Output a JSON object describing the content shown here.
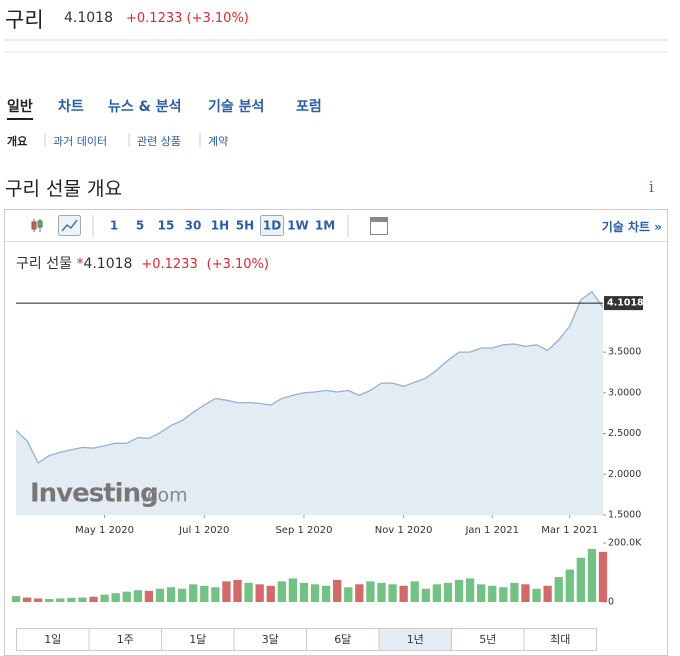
{
  "header": {
    "name": "구리",
    "price": "4.1018",
    "change": "+0.1233",
    "change_pct": "(+3.10%)"
  },
  "tabs": [
    "일반",
    "차트",
    "뉴스 & 분석",
    "기술 분석",
    "포럼"
  ],
  "selected_tab": 0,
  "subtabs": [
    "개요",
    "과거 데이터",
    "관련 상품",
    "계약"
  ],
  "selected_subtab": 0,
  "section_title": "구리 선물 개요",
  "info_icon": "i",
  "toolbar": {
    "timeframes": [
      "1",
      "5",
      "15",
      "30",
      "1H",
      "5H",
      "1D",
      "1W",
      "1M"
    ],
    "selected": 6,
    "link": "기술 차트 »"
  },
  "chart_data": {
    "type": "line",
    "title": "구리 선물",
    "marker": "*",
    "last_price": 4.1018,
    "watermark": [
      "Investing",
      ".com"
    ],
    "categories": [
      null,
      null,
      null,
      null,
      null,
      null,
      null,
      null,
      "May 1 2020",
      null,
      null,
      null,
      null,
      null,
      null,
      null,
      null,
      "Jul 1 2020",
      null,
      null,
      null,
      null,
      null,
      null,
      null,
      null,
      "Sep 1 2020",
      null,
      null,
      null,
      null,
      null,
      null,
      null,
      null,
      "Nov 1 2020",
      null,
      null,
      null,
      null,
      null,
      null,
      null,
      "Jan 1 2021",
      null,
      null,
      null,
      null,
      null,
      null,
      "Mar 1 2021",
      null,
      null,
      null
    ],
    "values": [
      2.54,
      2.41,
      2.14,
      2.23,
      2.27,
      2.3,
      2.33,
      2.32,
      2.35,
      2.38,
      2.38,
      2.45,
      2.44,
      2.51,
      2.6,
      2.66,
      2.76,
      2.85,
      2.93,
      2.91,
      2.88,
      2.88,
      2.87,
      2.85,
      2.93,
      2.97,
      3.0,
      3.01,
      3.03,
      3.01,
      3.03,
      2.97,
      3.03,
      3.12,
      3.12,
      3.08,
      3.13,
      3.18,
      3.28,
      3.4,
      3.5,
      3.5,
      3.55,
      3.55,
      3.59,
      3.6,
      3.57,
      3.59,
      3.52,
      3.65,
      3.82,
      4.14,
      4.24,
      4.05
    ],
    "color": "#8fb3d6",
    "area_color": "#e3ebf3",
    "ylim": [
      1.5,
      4.41
    ],
    "yticks": [
      {
        "value": 1.5,
        "label": "1.5000"
      },
      {
        "value": 2,
        "label": "2.0000"
      },
      {
        "value": 2.5,
        "label": "2.5000"
      },
      {
        "value": 3,
        "label": "3.0000"
      },
      {
        "value": 3.5,
        "label": "3.5000"
      }
    ],
    "volume": [
      20,
      15,
      12,
      10,
      12,
      14,
      15,
      18,
      25,
      30,
      35,
      40,
      38,
      45,
      50,
      45,
      60,
      55,
      50,
      70,
      75,
      65,
      60,
      55,
      70,
      80,
      65,
      60,
      55,
      75,
      50,
      60,
      70,
      65,
      60,
      55,
      70,
      45,
      60,
      65,
      75,
      80,
      60,
      55,
      50,
      65,
      60,
      45,
      55,
      85,
      110,
      150,
      180,
      170
    ],
    "volume_ylim": [
      0,
      200
    ],
    "volume_yticks": [
      0,
      {
        "value": 200,
        "label": "200.0K"
      }
    ],
    "up_color": "#72c383",
    "down_color": "#d36a6a"
  },
  "ranges": [
    "1일",
    "1주",
    "1달",
    "3달",
    "6달",
    "1년",
    "5년",
    "최대"
  ],
  "selected_range": 5
}
